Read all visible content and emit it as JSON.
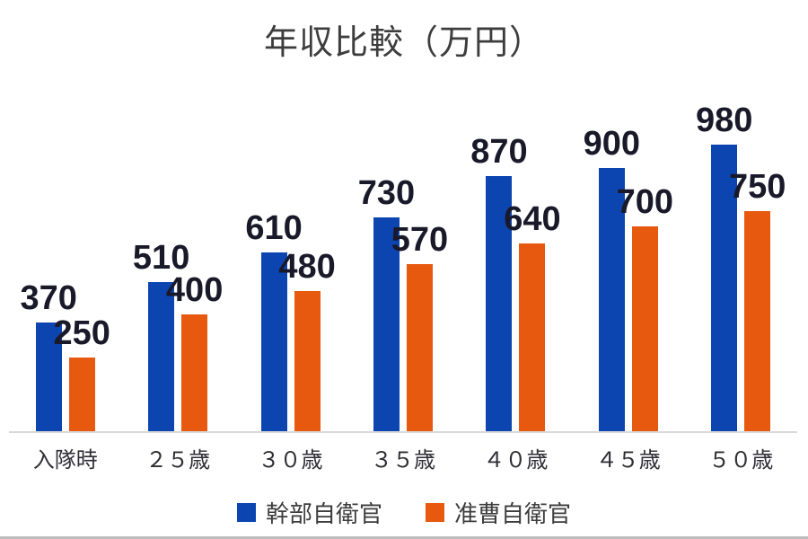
{
  "title": "年収比較（万円）",
  "colors": {
    "series_officer_blue": "#0c45b0",
    "series_warrant_orange": "#e7590e",
    "value_label": "#19192a",
    "axis_line": "#d9d9d9",
    "title_text": "#3d3d3d",
    "category_text": "#2d2d35"
  },
  "chart_data": {
    "type": "bar",
    "title": "年収比較（万円）",
    "categories": [
      "入隊時",
      "２５歳",
      "３０歳",
      "３５歳",
      "４０歳",
      "４５歳",
      "５０歳"
    ],
    "series": [
      {
        "name": "幹部自衛官",
        "color": "#0c45b0",
        "values": [
          370,
          510,
          610,
          730,
          870,
          900,
          980
        ]
      },
      {
        "name": "准曹自衛官",
        "color": "#e7590e",
        "values": [
          250,
          400,
          480,
          570,
          640,
          700,
          750
        ]
      }
    ],
    "data_labels": true,
    "legend_position": "bottom",
    "grid": false,
    "y_axis_visible": false
  },
  "legend": {
    "items": [
      {
        "label": "幹部自衛官",
        "color": "#0c45b0"
      },
      {
        "label": "准曹自衛官",
        "color": "#e7590e"
      }
    ]
  }
}
